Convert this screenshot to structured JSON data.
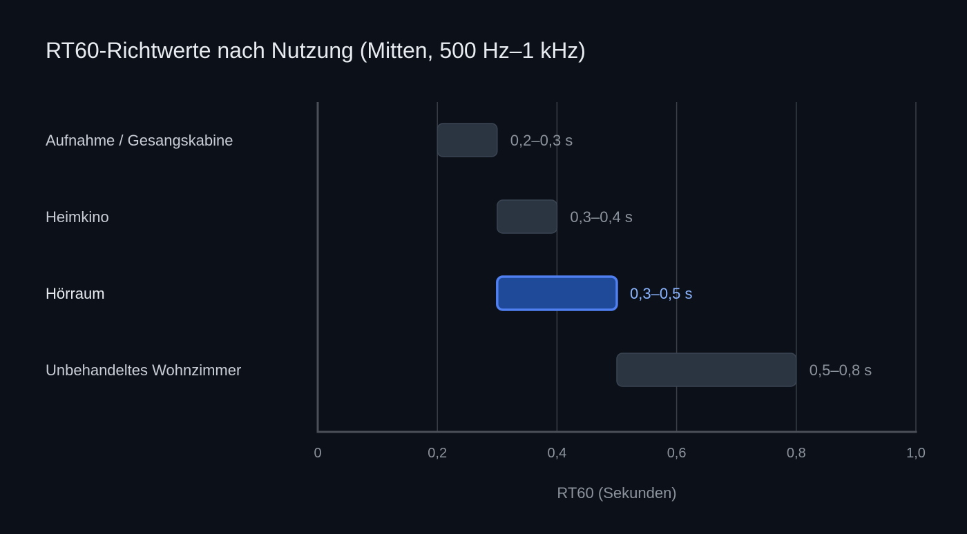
{
  "chart_data": {
    "type": "bar",
    "orientation": "horizontal",
    "subtype": "floating-range",
    "title": "RT60-Richtwerte nach Nutzung (Mitten, 500 Hz–1 kHz)",
    "xlabel": "RT60 (Sekunden)",
    "ylabel": "",
    "xlim": [
      0,
      1.0
    ],
    "xticks": [
      0,
      0.2,
      0.4,
      0.6,
      0.8,
      1.0
    ],
    "xtick_labels": [
      "0",
      "0,2",
      "0,4",
      "0,6",
      "0,8",
      "1,0"
    ],
    "grid": true,
    "categories": [
      "Aufnahme / Gesangskabine",
      "Heimkino",
      "Hörraum",
      "Unbehandeltes Wohnzimmer"
    ],
    "ranges": [
      [
        0.2,
        0.3
      ],
      [
        0.3,
        0.4
      ],
      [
        0.3,
        0.5
      ],
      [
        0.5,
        0.8
      ]
    ],
    "value_labels": [
      "0,2–0,3 s",
      "0,3–0,4 s",
      "0,3–0,5 s",
      "0,5–0,8 s"
    ],
    "highlight_index": 2,
    "colors": {
      "background": "#0c1018",
      "bar": "#2b3542",
      "bar_highlight": "#1f4a99",
      "bar_highlight_border": "#4f7ff0",
      "label_highlight": "#8ab4ff"
    }
  }
}
